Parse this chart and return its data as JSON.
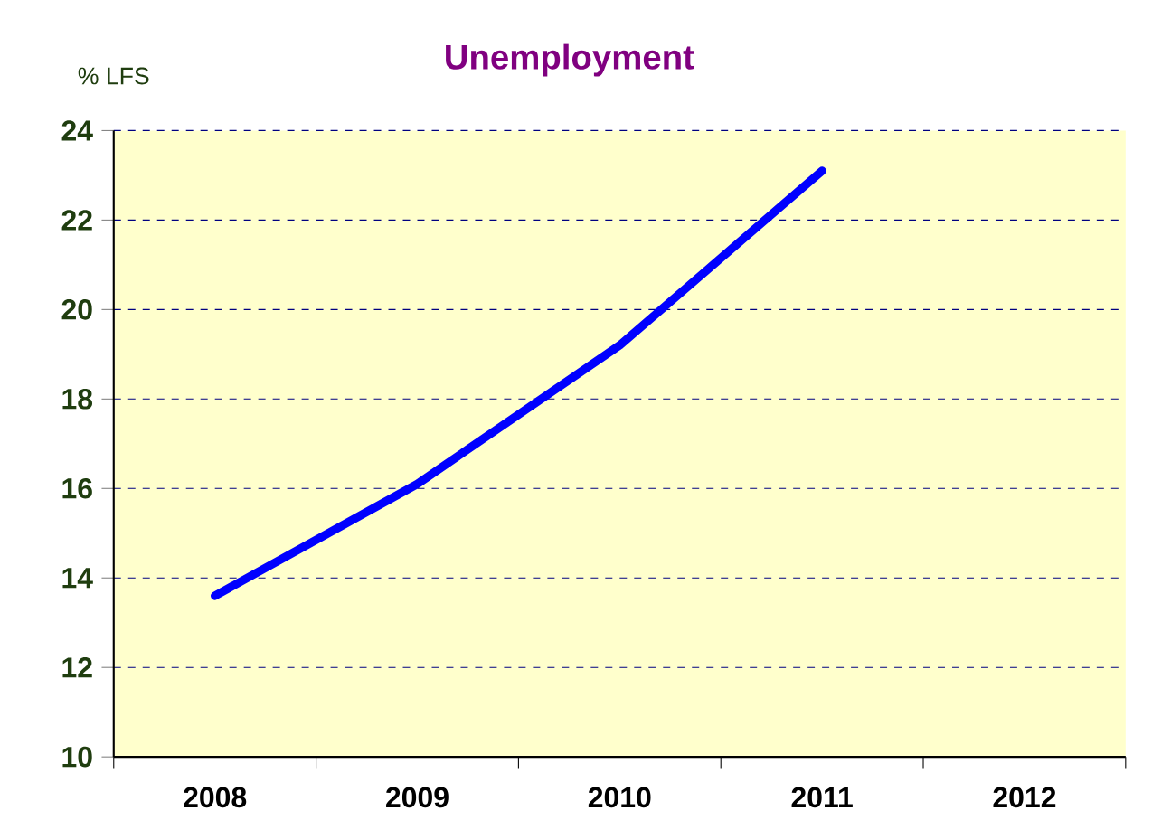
{
  "chart_data": {
    "type": "line",
    "title": "Unemployment",
    "ylabel": "% LFS",
    "categories": [
      "2008",
      "2009",
      "2010",
      "2011",
      "2012"
    ],
    "series": [
      {
        "color": "#0000ff",
        "values": [
          13.6,
          16.1,
          19.2,
          23.1,
          null
        ]
      }
    ],
    "ylim": [
      10,
      24
    ],
    "yticks": [
      10,
      12,
      14,
      16,
      18,
      20,
      22,
      24
    ],
    "grid": "y",
    "marker": "none",
    "line_style": "solid"
  }
}
